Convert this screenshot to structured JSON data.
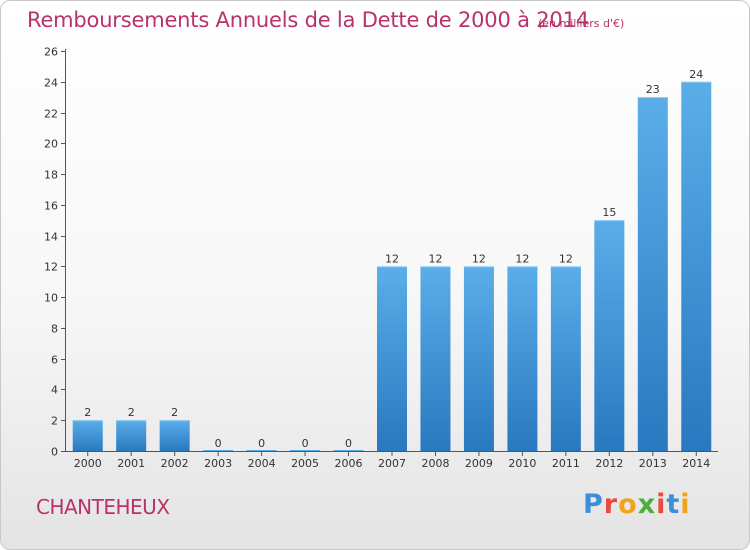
{
  "title": "Remboursements Annuels de la Dette de 2000 à 2014",
  "subtitle": "(en milliers d'€)",
  "commune": "CHANTEHEUX",
  "brand": {
    "letters": [
      "P",
      "r",
      "o",
      "x",
      "i",
      "t",
      "i"
    ],
    "colors": [
      "#3a8fd9",
      "#e84c3d",
      "#f2a31b",
      "#4fae3b",
      "#e84c3d",
      "#3a8fd9",
      "#f2a31b"
    ]
  },
  "colors": {
    "bar_top": "#5aaee8",
    "bar_bottom": "#2a78c0",
    "title": "#b8336a"
  },
  "chart_data": {
    "type": "bar",
    "categories": [
      "2000",
      "2001",
      "2002",
      "2003",
      "2004",
      "2005",
      "2006",
      "2007",
      "2008",
      "2009",
      "2010",
      "2011",
      "2012",
      "2013",
      "2014"
    ],
    "values": [
      2,
      2,
      2,
      0,
      0,
      0,
      0,
      12,
      12,
      12,
      12,
      12,
      15,
      23,
      24
    ],
    "labels": [
      "2",
      "2",
      "2",
      "0",
      "0",
      "0",
      "0",
      "12",
      "12",
      "12",
      "12",
      "12",
      "15",
      "23",
      "24"
    ],
    "title": "Remboursements Annuels de la Dette de 2000 à 2014",
    "xlabel": "",
    "ylabel": "",
    "ylim": [
      0,
      26
    ],
    "yticks": [
      0,
      2,
      4,
      6,
      8,
      10,
      12,
      14,
      16,
      18,
      20,
      22,
      24,
      26
    ],
    "grid": false
  }
}
